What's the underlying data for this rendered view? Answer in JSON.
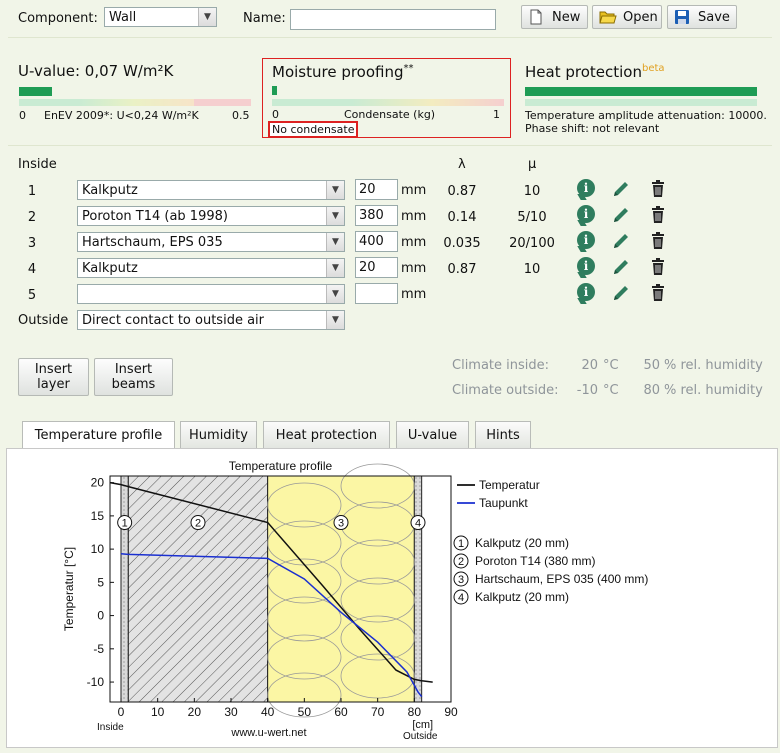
{
  "header": {
    "component_label": "Component:",
    "component_value": "Wall",
    "name_label": "Name:",
    "name_value": "",
    "new_label": "New",
    "open_label": "Open",
    "save_label": "Save"
  },
  "uvalue": {
    "title": "U-value: 0,07 W/m²K",
    "scale_min": "0",
    "scale_mid": "EnEV 2009*: U<0,24 W/m²K",
    "scale_max": "0.5",
    "level": 0.14
  },
  "moisture": {
    "title": "Moisture proofing",
    "stars": "**",
    "scale_min": "0",
    "scale_mid": "Condensate (kg)",
    "scale_max": "1",
    "status": "No condensate",
    "level": 0.02
  },
  "heat": {
    "title": "Heat protection",
    "badge": "beta",
    "line1": "Temperature amplitude attenuation: 10000.",
    "line2": "Phase shift: not relevant",
    "level": 1.0
  },
  "layers": {
    "inside_label": "Inside",
    "outside_label": "Outside",
    "lambda_header": "λ",
    "mu_header": "μ",
    "unit": "mm",
    "rows": [
      {
        "num": "1",
        "material": "Kalkputz",
        "thickness": "20",
        "lambda": "0.87",
        "mu": "10"
      },
      {
        "num": "2",
        "material": "Poroton T14 (ab 1998)",
        "thickness": "380",
        "lambda": "0.14",
        "mu": "5/10"
      },
      {
        "num": "3",
        "material": "Hartschaum, EPS 035",
        "thickness": "400",
        "lambda": "0.035",
        "mu": "20/100"
      },
      {
        "num": "4",
        "material": "Kalkputz",
        "thickness": "20",
        "lambda": "0.87",
        "mu": "10"
      },
      {
        "num": "5",
        "material": "",
        "thickness": "",
        "lambda": "",
        "mu": ""
      }
    ],
    "outside_value": "Direct contact to outside air"
  },
  "actions": {
    "insert_layer": "Insert layer",
    "insert_beams": "Insert beams"
  },
  "climate": {
    "inside_label": "Climate inside:",
    "inside_temp": "20",
    "inside_hum": "50",
    "outside_label": "Climate outside:",
    "outside_temp": "-10",
    "outside_hum": "80",
    "temp_unit": "°C",
    "hum_unit": "% rel. humidity"
  },
  "tabs": [
    "Temperature profile",
    "Humidity",
    "Heat protection",
    "U-value",
    "Hints"
  ],
  "chart_data": {
    "type": "line",
    "title": "Temperature profile",
    "xlabel": "[cm]",
    "ylabel": "Temperatur [°C]",
    "xlim": [
      -3,
      90
    ],
    "ylim": [
      -13,
      21
    ],
    "xticks": [
      "0",
      "10",
      "20",
      "30",
      "40",
      "50",
      "60",
      "70",
      "80",
      "90"
    ],
    "yticks": [
      "20",
      "15",
      "10",
      "5",
      "0",
      "-5",
      "-10"
    ],
    "inside_label": "Inside",
    "outside_label": "Outside",
    "footer": "www.u-wert.net",
    "layer_bounds": [
      0,
      2,
      40,
      80,
      82
    ],
    "layer_markers": [
      "1",
      "2",
      "3",
      "4"
    ],
    "series": [
      {
        "name": "Temperatur",
        "color": "#111111",
        "x": [
          -3,
          0,
          2,
          40,
          55,
          65,
          75,
          80,
          82,
          85
        ],
        "y": [
          20,
          19.7,
          19.4,
          14.0,
          4.5,
          -2.0,
          -8.2,
          -9.6,
          -9.8,
          -10
        ]
      },
      {
        "name": "Taupunkt",
        "color": "#1a2fd0",
        "x": [
          0,
          2,
          40,
          50,
          60,
          70,
          78,
          81,
          82
        ],
        "y": [
          9.3,
          9.2,
          8.6,
          5.5,
          0.5,
          -4.0,
          -8.5,
          -11.5,
          -12.2
        ]
      }
    ],
    "legend_layers": [
      {
        "num": "1",
        "label": "Kalkputz (20 mm)"
      },
      {
        "num": "2",
        "label": "Poroton T14 (380 mm)"
      },
      {
        "num": "3",
        "label": "Hartschaum, EPS 035 (400 mm)"
      },
      {
        "num": "4",
        "label": "Kalkputz (20 mm)"
      }
    ]
  }
}
